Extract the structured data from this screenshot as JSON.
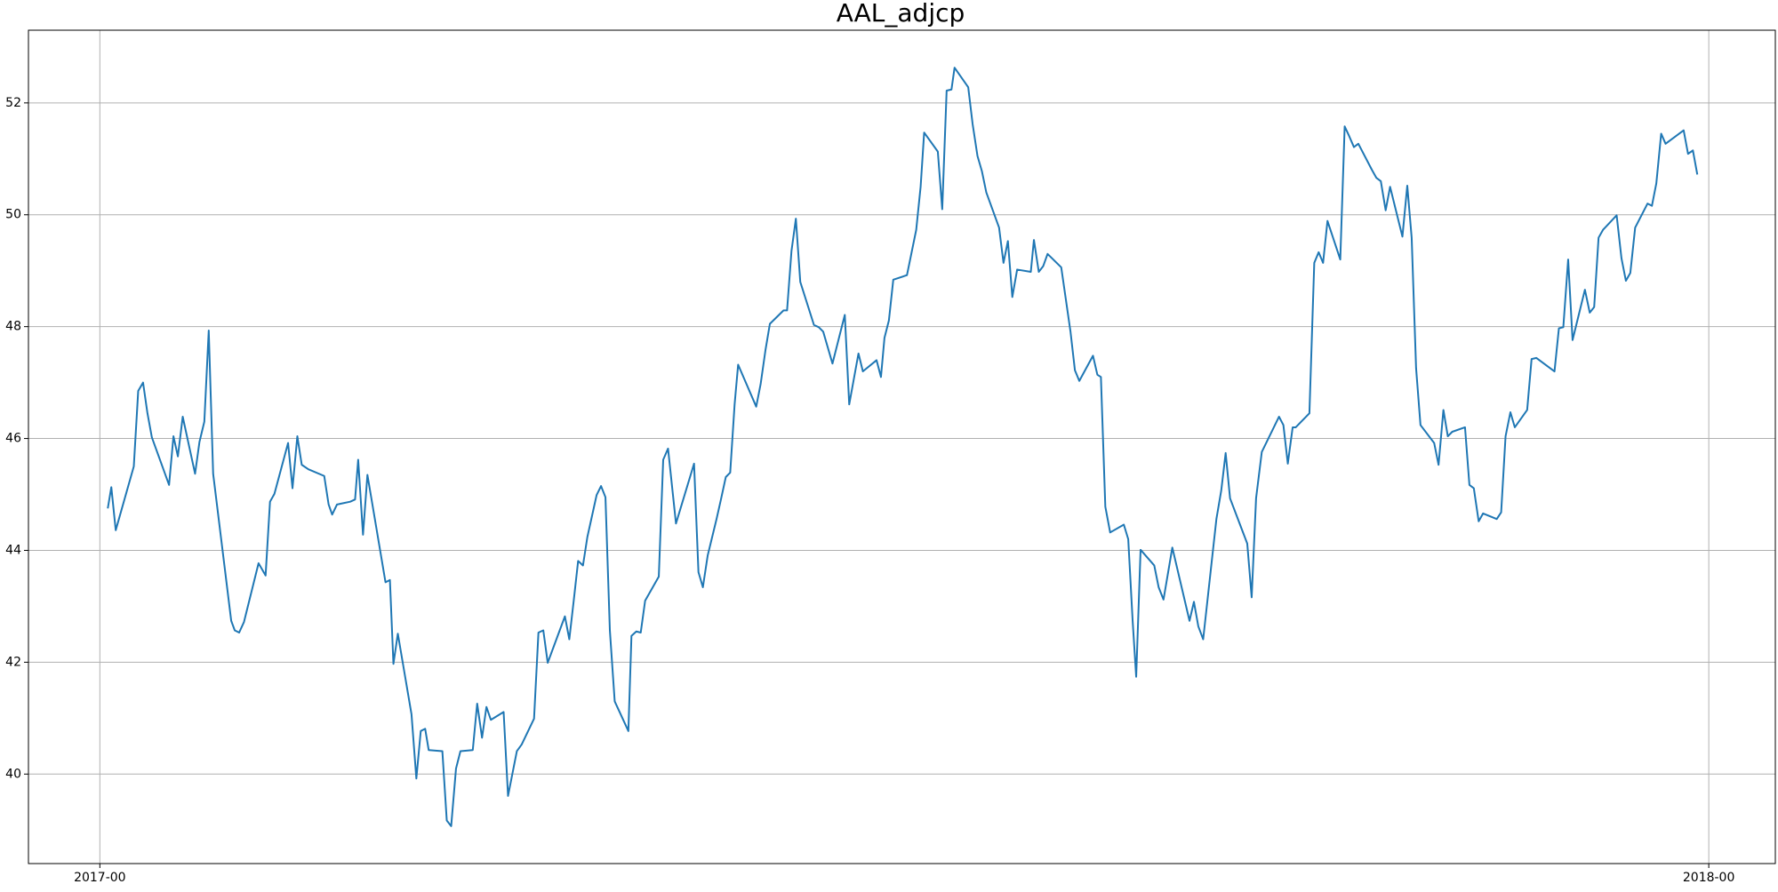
{
  "chart_data": {
    "type": "line",
    "title": "AAL_adjcp",
    "color": "#1f77b4",
    "grid": true,
    "xlim": [
      -16.2,
      380.1
    ],
    "xticks": [
      {
        "value": 0,
        "label": "2017-00"
      },
      {
        "value": 365,
        "label": "2018-00"
      }
    ],
    "ylim": [
      38.4,
      53.3
    ],
    "yticks": [
      40,
      42,
      44,
      46,
      48,
      50,
      52
    ],
    "x": [
      1.8,
      2.6,
      3.6,
      7.7,
      8.7,
      9.8,
      10.8,
      11.8,
      15.7,
      16.7,
      17.7,
      18.8,
      21.6,
      22.6,
      23.7,
      24.7,
      25.7,
      29.8,
      30.6,
      31.6,
      32.7,
      36.0,
      37.6,
      38.6,
      39.6,
      42.7,
      43.7,
      44.8,
      45.8,
      47.3,
      50.9,
      51.9,
      52.7,
      53.8,
      56.8,
      57.9,
      58.6,
      59.7,
      60.7,
      64.8,
      65.8,
      66.6,
      67.6,
      70.7,
      71.8,
      72.8,
      73.8,
      74.6,
      77.7,
      78.7,
      79.7,
      80.8,
      81.8,
      84.6,
      85.6,
      86.7,
      87.7,
      88.7,
      91.6,
      92.6,
      94.6,
      95.7,
      98.5,
      99.5,
      100.6,
      101.6,
      105.5,
      106.5,
      107.5,
      108.5,
      109.6,
      110.6,
      112.7,
      113.7,
      114.7,
      115.7,
      116.8,
      119.9,
      120.6,
      121.7,
      122.7,
      123.7,
      126.8,
      127.8,
      128.9,
      130.7,
      134.8,
      135.8,
      136.8,
      137.9,
      139.9,
      140.9,
      142.0,
      143.0,
      144.0,
      144.8,
      148.9,
      149.9,
      151.0,
      152.0,
      155.1,
      155.9,
      156.9,
      157.9,
      158.9,
      162.0,
      163.1,
      164.1,
      166.2,
      169.0,
      170.0,
      172.1,
      173.1,
      176.2,
      177.2,
      178.0,
      179.0,
      180.0,
      183.1,
      185.2,
      186.2,
      187.0,
      190.1,
      191.1,
      192.1,
      193.2,
      193.9,
      197.0,
      198.0,
      199.1,
      200.1,
      201.1,
      204.0,
      205.0,
      206.0,
      207.0,
      208.1,
      211.2,
      211.9,
      213.0,
      214.0,
      215.0,
      218.1,
      220.2,
      221.2,
      222.2,
      225.3,
      226.3,
      227.1,
      228.1,
      229.2,
      232.3,
      233.3,
      234.3,
      235.1,
      236.1,
      239.2,
      240.2,
      241.3,
      243.3,
      247.2,
      248.2,
      249.2,
      250.3,
      253.3,
      254.4,
      255.4,
      256.4,
      260.3,
      261.3,
      262.3,
      263.6,
      267.5,
      268.5,
      269.5,
      270.6,
      271.3,
      274.4,
      275.5,
      276.5,
      277.5,
      278.5,
      281.4,
      282.4,
      283.4,
      284.5,
      285.5,
      288.6,
      289.6,
      290.6,
      291.7,
      292.7,
      295.5,
      296.6,
      297.6,
      298.6,
      299.6,
      302.7,
      303.7,
      304.8,
      305.8,
      306.8,
      309.7,
      310.7,
      311.7,
      312.8,
      313.8,
      316.9,
      317.9,
      318.9,
      320.0,
      321.0,
      323.8,
      324.8,
      325.9,
      330.0,
      331.0,
      332.0,
      333.1,
      334.1,
      336.9,
      338.0,
      339.0,
      340.0,
      341.0,
      344.1,
      345.2,
      346.2,
      347.2,
      348.3,
      351.1,
      352.1,
      353.1,
      354.2,
      355.2,
      359.3,
      360.3,
      361.4,
      362.4
    ],
    "values": [
      44.75,
      45.13,
      44.36,
      45.5,
      46.85,
      47.0,
      46.45,
      46.02,
      45.17,
      46.04,
      45.68,
      46.39,
      45.37,
      45.94,
      46.3,
      47.93,
      45.37,
      42.74,
      42.57,
      42.53,
      42.72,
      43.77,
      43.55,
      44.87,
      45.01,
      45.92,
      45.11,
      46.04,
      45.53,
      45.45,
      45.33,
      44.82,
      44.64,
      44.82,
      44.87,
      44.91,
      45.62,
      44.28,
      45.35,
      43.43,
      43.47,
      41.97,
      42.51,
      41.07,
      39.92,
      40.77,
      40.81,
      40.43,
      40.41,
      39.17,
      39.07,
      40.1,
      40.41,
      40.43,
      41.26,
      40.65,
      41.2,
      40.97,
      41.11,
      39.61,
      40.41,
      40.53,
      40.99,
      42.53,
      42.57,
      41.99,
      42.82,
      42.41,
      43.1,
      43.81,
      43.73,
      44.24,
      44.99,
      45.15,
      44.95,
      42.57,
      41.3,
      40.77,
      42.47,
      42.55,
      42.53,
      43.1,
      43.53,
      45.62,
      45.82,
      44.48,
      45.55,
      43.61,
      43.34,
      43.91,
      44.56,
      44.91,
      45.31,
      45.39,
      46.61,
      47.32,
      46.57,
      46.97,
      47.58,
      48.05,
      48.29,
      48.29,
      49.35,
      49.93,
      48.8,
      48.03,
      47.99,
      47.91,
      47.34,
      48.21,
      46.61,
      47.52,
      47.2,
      47.4,
      47.1,
      47.8,
      48.11,
      48.84,
      48.92,
      49.73,
      50.5,
      51.47,
      51.13,
      50.1,
      52.22,
      52.24,
      52.63,
      52.28,
      51.62,
      51.05,
      50.78,
      50.4,
      49.77,
      49.14,
      49.53,
      48.53,
      49.02,
      48.98,
      49.55,
      48.98,
      49.08,
      49.3,
      49.06,
      47.91,
      47.22,
      47.03,
      47.48,
      47.14,
      47.1,
      44.78,
      44.32,
      44.46,
      44.2,
      42.74,
      41.74,
      44.01,
      43.73,
      43.34,
      43.12,
      44.05,
      42.74,
      43.08,
      42.64,
      42.41,
      44.56,
      45.07,
      45.74,
      44.93,
      44.12,
      43.16,
      44.93,
      45.76,
      46.39,
      46.24,
      45.55,
      46.2,
      46.2,
      46.45,
      49.14,
      49.33,
      49.14,
      49.89,
      49.2,
      51.58,
      51.41,
      51.21,
      51.27,
      50.8,
      50.66,
      50.6,
      50.08,
      50.5,
      49.61,
      50.52,
      49.59,
      47.26,
      46.24,
      45.92,
      45.53,
      46.51,
      46.04,
      46.12,
      46.2,
      45.17,
      45.11,
      44.52,
      44.66,
      44.56,
      44.68,
      46.04,
      46.47,
      46.2,
      46.51,
      47.42,
      47.44,
      47.2,
      47.97,
      47.99,
      49.2,
      47.76,
      48.66,
      48.25,
      48.35,
      49.59,
      49.73,
      49.99,
      49.22,
      48.82,
      48.96,
      49.77,
      50.2,
      50.16,
      50.56,
      51.45,
      51.27,
      51.51,
      51.09,
      51.15,
      50.72
    ]
  }
}
